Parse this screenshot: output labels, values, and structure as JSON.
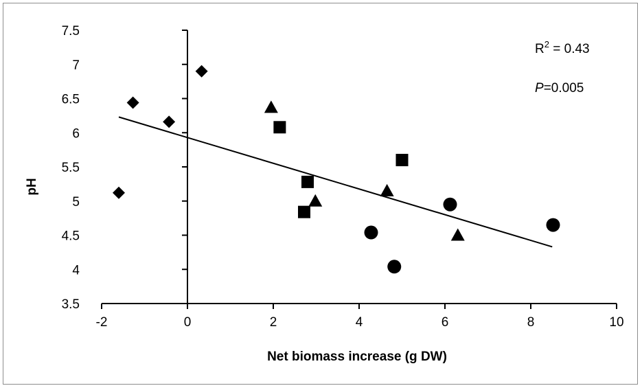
{
  "chart_data": {
    "type": "scatter",
    "title": "",
    "xlabel": "Net biomass increase (g DW)",
    "ylabel": "pH",
    "xlim": [
      -2,
      10
    ],
    "ylim": [
      3.5,
      7.5
    ],
    "x_ticks": [
      "-2",
      "0",
      "2",
      "4",
      "6",
      "8",
      "10"
    ],
    "y_ticks": [
      "3.5",
      "4",
      "4.5",
      "5",
      "5.5",
      "6",
      "6.5",
      "7",
      "7.5"
    ],
    "grid": false,
    "series": [
      {
        "marker": "diamond",
        "points": [
          [
            -1.6,
            5.12
          ],
          [
            -1.27,
            6.44
          ],
          [
            -0.43,
            6.16
          ],
          [
            0.33,
            6.9
          ]
        ]
      },
      {
        "marker": "triangle",
        "points": [
          [
            1.95,
            6.37
          ],
          [
            2.98,
            5.0
          ],
          [
            4.65,
            5.15
          ],
          [
            6.3,
            4.5
          ]
        ]
      },
      {
        "marker": "square",
        "points": [
          [
            2.15,
            6.08
          ],
          [
            2.8,
            5.28
          ],
          [
            2.72,
            4.84
          ],
          [
            5.0,
            5.6
          ]
        ]
      },
      {
        "marker": "circle",
        "points": [
          [
            4.28,
            4.54
          ],
          [
            4.82,
            4.04
          ],
          [
            6.12,
            4.95
          ],
          [
            8.52,
            4.65
          ]
        ]
      }
    ],
    "trendline": {
      "x_start": -1.6,
      "y_start": 6.23,
      "x_end": 8.5,
      "y_end": 4.33
    },
    "annotations": {
      "r2_prefix": "R",
      "r2_sup": "2",
      "r2_value": " = 0.43",
      "p_label": "P",
      "p_value": "=0.005"
    }
  }
}
